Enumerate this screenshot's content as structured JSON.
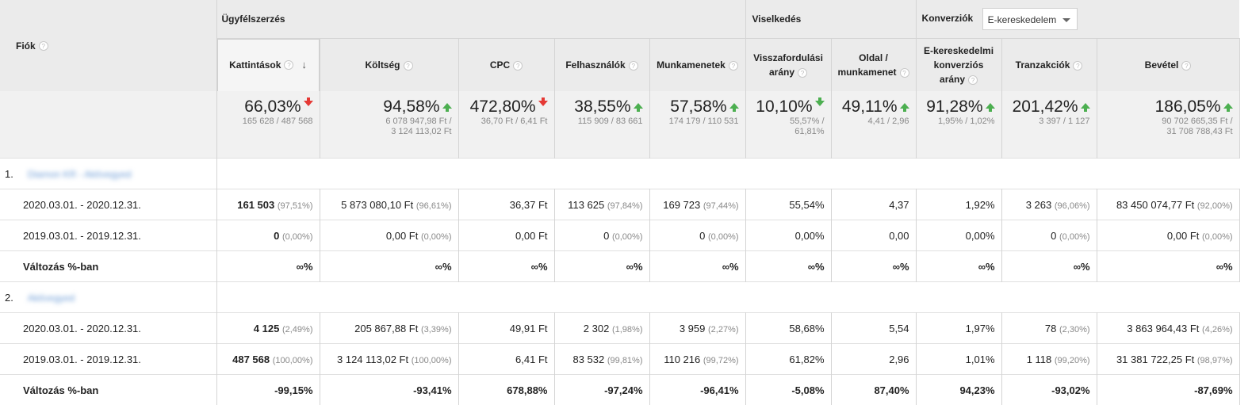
{
  "header": {
    "fiok_label": "Fiók",
    "group_acquisition": "Ügyfélszerzés",
    "group_behavior": "Viselkedés",
    "group_conversion": "Konverziók",
    "conversion_select": "E-kereskedelem",
    "help_glyph": "?"
  },
  "columns": [
    {
      "l1": "Kattintások",
      "l2": ""
    },
    {
      "l1": "Költség",
      "l2": ""
    },
    {
      "l1": "CPC",
      "l2": ""
    },
    {
      "l1": "Felhasználók",
      "l2": ""
    },
    {
      "l1": "Munkamenetek",
      "l2": ""
    },
    {
      "l1": "Visszafordulási",
      "l2": "arány"
    },
    {
      "l1": "Oldal /",
      "l2": "munkamenet"
    },
    {
      "l1": "E-kereskedelmi",
      "l2": "konverziós",
      "l3": "arány"
    },
    {
      "l1": "Tranzakciók",
      "l2": ""
    },
    {
      "l1": "Bevétel",
      "l2": ""
    }
  ],
  "summary": [
    {
      "value": "66,03%",
      "dir": "down",
      "sub1": "165 628 / 487 568",
      "sub2": ""
    },
    {
      "value": "94,58%",
      "dir": "up",
      "sub1": "6 078 947,98 Ft /",
      "sub2": "3 124 113,02 Ft"
    },
    {
      "value": "472,80%",
      "dir": "down",
      "sub1": "36,70 Ft / 6,41 Ft",
      "sub2": ""
    },
    {
      "value": "38,55%",
      "dir": "up",
      "sub1": "115 909 / 83 661",
      "sub2": ""
    },
    {
      "value": "57,58%",
      "dir": "up",
      "sub1": "174 179 / 110 531",
      "sub2": ""
    },
    {
      "value": "10,10%",
      "dir": "down-green",
      "sub1": "55,57% /",
      "sub2": "61,81%"
    },
    {
      "value": "49,11%",
      "dir": "up",
      "sub1": "4,41 / 2,96",
      "sub2": ""
    },
    {
      "value": "91,28%",
      "dir": "up",
      "sub1": "1,95% / 1,02%",
      "sub2": ""
    },
    {
      "value": "201,42%",
      "dir": "up",
      "sub1": "3 397 / 1 127",
      "sub2": ""
    },
    {
      "value": "186,05%",
      "dir": "up",
      "sub1": "90 702 665,35 Ft /",
      "sub2": "31 708 788,43 Ft"
    }
  ],
  "groups": [
    {
      "num": "1.",
      "name": "Diamon KR - Aktívegyed",
      "rows": [
        {
          "label": "2020.03.01. - 2020.12.31.",
          "cells": [
            {
              "v": "161 503",
              "p": "(97,51%)"
            },
            {
              "v": "5 873 080,10 Ft",
              "p": "(96,61%)"
            },
            {
              "v": "36,37 Ft",
              "p": ""
            },
            {
              "v": "113 625",
              "p": "(97,84%)"
            },
            {
              "v": "169 723",
              "p": "(97,44%)"
            },
            {
              "v": "55,54%",
              "p": ""
            },
            {
              "v": "4,37",
              "p": ""
            },
            {
              "v": "1,92%",
              "p": ""
            },
            {
              "v": "3 263",
              "p": "(96,06%)"
            },
            {
              "v": "83 450 074,77 Ft",
              "p": "(92,00%)"
            }
          ]
        },
        {
          "label": "2019.03.01. - 2019.12.31.",
          "cells": [
            {
              "v": "0",
              "p": "(0,00%)"
            },
            {
              "v": "0,00 Ft",
              "p": "(0,00%)"
            },
            {
              "v": "0,00 Ft",
              "p": ""
            },
            {
              "v": "0",
              "p": "(0,00%)"
            },
            {
              "v": "0",
              "p": "(0,00%)"
            },
            {
              "v": "0,00%",
              "p": ""
            },
            {
              "v": "0,00",
              "p": ""
            },
            {
              "v": "0,00%",
              "p": ""
            },
            {
              "v": "0",
              "p": "(0,00%)"
            },
            {
              "v": "0,00 Ft",
              "p": "(0,00%)"
            }
          ]
        },
        {
          "label": "Változás %-ban",
          "change": true,
          "cells": [
            {
              "v": "∞%",
              "p": ""
            },
            {
              "v": "∞%",
              "p": ""
            },
            {
              "v": "∞%",
              "p": ""
            },
            {
              "v": "∞%",
              "p": ""
            },
            {
              "v": "∞%",
              "p": ""
            },
            {
              "v": "∞%",
              "p": ""
            },
            {
              "v": "∞%",
              "p": ""
            },
            {
              "v": "∞%",
              "p": ""
            },
            {
              "v": "∞%",
              "p": ""
            },
            {
              "v": "∞%",
              "p": ""
            }
          ]
        }
      ]
    },
    {
      "num": "2.",
      "name": "Aktívegyed",
      "rows": [
        {
          "label": "2020.03.01. - 2020.12.31.",
          "cells": [
            {
              "v": "4 125",
              "p": "(2,49%)"
            },
            {
              "v": "205 867,88 Ft",
              "p": "(3,39%)"
            },
            {
              "v": "49,91 Ft",
              "p": ""
            },
            {
              "v": "2 302",
              "p": "(1,98%)"
            },
            {
              "v": "3 959",
              "p": "(2,27%)"
            },
            {
              "v": "58,68%",
              "p": ""
            },
            {
              "v": "5,54",
              "p": ""
            },
            {
              "v": "1,97%",
              "p": ""
            },
            {
              "v": "78",
              "p": "(2,30%)"
            },
            {
              "v": "3 863 964,43 Ft",
              "p": "(4,26%)"
            }
          ]
        },
        {
          "label": "2019.03.01. - 2019.12.31.",
          "cells": [
            {
              "v": "487 568",
              "p": "(100,00%)"
            },
            {
              "v": "3 124 113,02 Ft",
              "p": "(100,00%)"
            },
            {
              "v": "6,41 Ft",
              "p": ""
            },
            {
              "v": "83 532",
              "p": "(99,81%)"
            },
            {
              "v": "110 216",
              "p": "(99,72%)"
            },
            {
              "v": "61,82%",
              "p": ""
            },
            {
              "v": "2,96",
              "p": ""
            },
            {
              "v": "1,01%",
              "p": ""
            },
            {
              "v": "1 118",
              "p": "(99,20%)"
            },
            {
              "v": "31 381 722,25 Ft",
              "p": "(98,97%)"
            }
          ]
        },
        {
          "label": "Változás %-ban",
          "change": true,
          "cells": [
            {
              "v": "-99,15%",
              "p": ""
            },
            {
              "v": "-93,41%",
              "p": ""
            },
            {
              "v": "678,88%",
              "p": ""
            },
            {
              "v": "-97,24%",
              "p": ""
            },
            {
              "v": "-96,41%",
              "p": ""
            },
            {
              "v": "-5,08%",
              "p": ""
            },
            {
              "v": "87,40%",
              "p": ""
            },
            {
              "v": "94,23%",
              "p": ""
            },
            {
              "v": "-93,02%",
              "p": ""
            },
            {
              "v": "-87,69%",
              "p": ""
            }
          ]
        }
      ]
    }
  ],
  "colors": {
    "up": "#4caf50",
    "down": "#e53935",
    "header_bg": "#ebebeb"
  }
}
